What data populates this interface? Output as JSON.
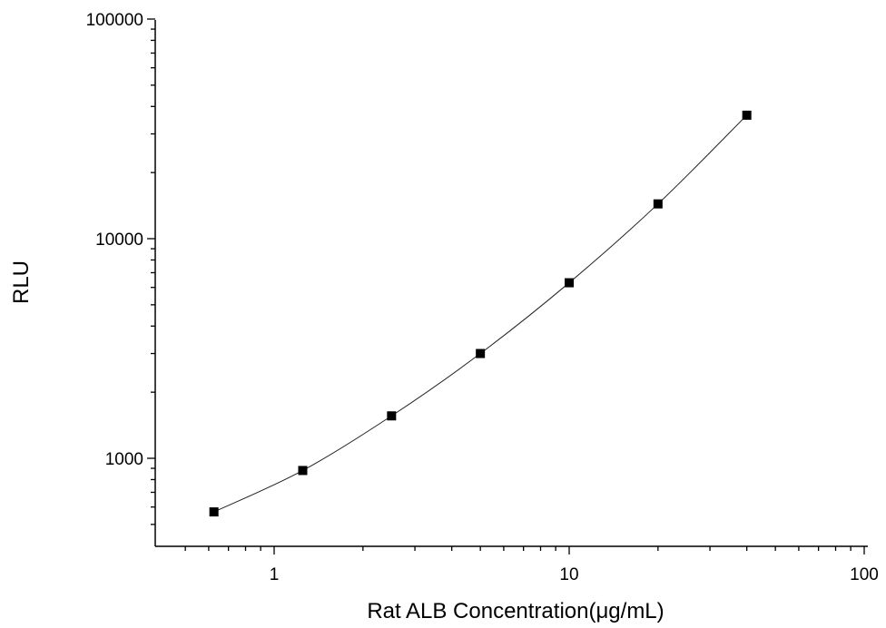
{
  "chart_data": {
    "type": "scatter",
    "xlabel": "Rat ALB Concentration(μg/mL)",
    "ylabel": "RLU",
    "x_scale": "log",
    "y_scale": "log",
    "xlim": [
      0.45,
      100
    ],
    "ylim": [
      450,
      100000
    ],
    "x_ticks": [
      1,
      10,
      100
    ],
    "x_tick_labels": [
      "1",
      "10",
      "100"
    ],
    "y_ticks": [
      1000,
      10000,
      100000
    ],
    "y_tick_labels": [
      "1000",
      "10000",
      "100000"
    ],
    "grid": false,
    "series": [
      {
        "x": [
          0.625,
          1.25,
          2.5,
          5,
          10,
          20,
          40
        ],
        "y": [
          570,
          880,
          1560,
          3000,
          6300,
          14400,
          36500
        ],
        "fit_line": true,
        "color": "#000000",
        "marker": "square"
      }
    ]
  }
}
